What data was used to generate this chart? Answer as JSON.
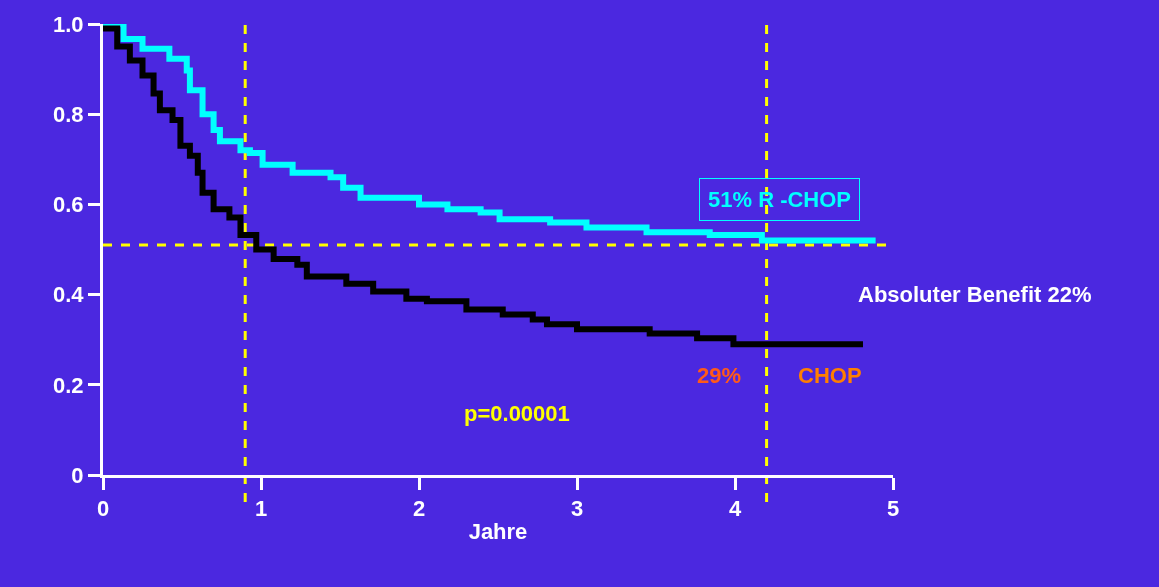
{
  "chart_data": {
    "type": "step",
    "xlabel": "Jahre",
    "xlim": [
      0,
      5
    ],
    "xticks": [
      0,
      1,
      2,
      3,
      4,
      5
    ],
    "ylim": [
      0,
      1
    ],
    "yticks": [
      {
        "value": 0,
        "label": "0"
      },
      {
        "value": 0.2,
        "label": "0.2"
      },
      {
        "value": 0.4,
        "label": "0.4"
      },
      {
        "value": 0.6,
        "label": "0.6"
      },
      {
        "value": 0.8,
        "label": "0.8"
      },
      {
        "value": 1,
        "label": "1.0"
      }
    ],
    "grid": false,
    "marker": "none",
    "line_style": "solid",
    "series": [
      {
        "color": "#00ffff",
        "x": [
          0,
          0.13,
          0.25,
          0.42,
          0.53,
          0.55,
          0.63,
          0.7,
          0.74,
          0.87,
          0.93,
          1.01,
          1.2,
          1.44,
          1.52,
          1.63,
          2.0,
          2.18,
          2.39,
          2.51,
          2.83,
          3.06,
          3.44,
          3.84,
          4.17,
          4.89
        ],
        "values": [
          1.0,
          0.967,
          0.945,
          0.923,
          0.897,
          0.853,
          0.8,
          0.765,
          0.74,
          0.72,
          0.714,
          0.688,
          0.67,
          0.66,
          0.637,
          0.615,
          0.6,
          0.589,
          0.582,
          0.567,
          0.56,
          0.549,
          0.538,
          0.532,
          0.52,
          0.52
        ]
      },
      {
        "color": "#000000",
        "x": [
          0,
          0.09,
          0.17,
          0.25,
          0.32,
          0.36,
          0.44,
          0.49,
          0.55,
          0.6,
          0.63,
          0.7,
          0.8,
          0.87,
          0.97,
          1.08,
          1.23,
          1.29,
          1.54,
          1.71,
          1.92,
          2.05,
          2.3,
          2.53,
          2.72,
          2.81,
          3.0,
          3.46,
          3.76,
          3.99,
          4.81
        ],
        "values": [
          0.99,
          0.95,
          0.919,
          0.886,
          0.846,
          0.809,
          0.787,
          0.73,
          0.708,
          0.67,
          0.626,
          0.589,
          0.571,
          0.532,
          0.5,
          0.479,
          0.466,
          0.44,
          0.424,
          0.407,
          0.391,
          0.385,
          0.367,
          0.356,
          0.345,
          0.334,
          0.323,
          0.314,
          0.303,
          0.29,
          0.29
        ]
      }
    ],
    "ref_lines": [
      {
        "axis": "y",
        "value": 0.51,
        "color": "#ffff00",
        "line_style": "dashed"
      },
      {
        "axis": "x",
        "value": 0.9,
        "color": "#ffff00",
        "line_style": "dashed"
      },
      {
        "axis": "x",
        "value": 4.2,
        "color": "#ffff00",
        "line_style": "dashed"
      }
    ],
    "annotations": [
      "51% R -CHOP",
      "Absoluter Benefit 22%",
      "29%",
      "CHOP",
      "p=0.00001"
    ]
  }
}
